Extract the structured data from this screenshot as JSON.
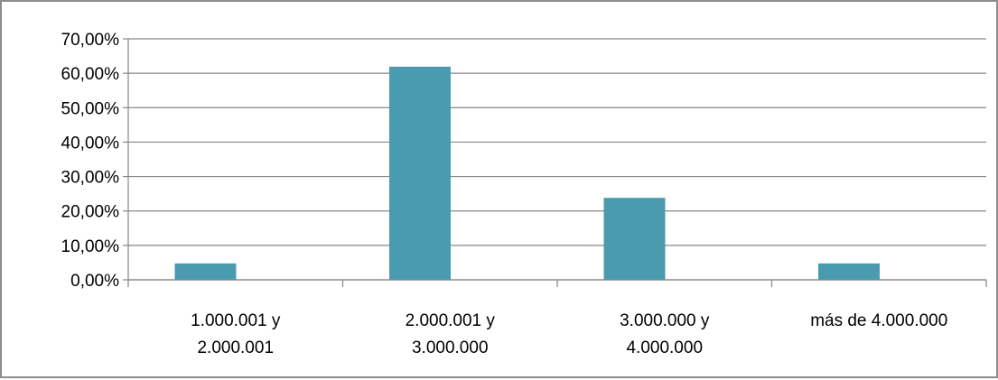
{
  "chart_data": {
    "type": "bar",
    "title": "",
    "xlabel": "",
    "ylabel": "",
    "categories": [
      "1.000.001 y 2.000.001",
      "2.000.001 y 3.000.000",
      "3.000.000 y 4.000.000",
      "más de 4.000.000"
    ],
    "category_label_lines": [
      [
        "1.000.001 y",
        "2.000.001"
      ],
      [
        "2.000.001 y",
        "3.000.000"
      ],
      [
        "3.000.000 y",
        "4.000.000"
      ],
      [
        "más de 4.000.000"
      ]
    ],
    "values": [
      4.76,
      61.9,
      23.81,
      4.76
    ],
    "ylim": [
      0,
      70
    ],
    "yticks": [
      0,
      10,
      20,
      30,
      40,
      50,
      60,
      70
    ],
    "ytick_labels": [
      "0,00%",
      "10,00%",
      "20,00%",
      "30,00%",
      "40,00%",
      "50,00%",
      "60,00%",
      "70,00%"
    ],
    "grid": true,
    "legend": "none",
    "bar_color": "#4a9bb0",
    "grid_color": "#868686"
  }
}
